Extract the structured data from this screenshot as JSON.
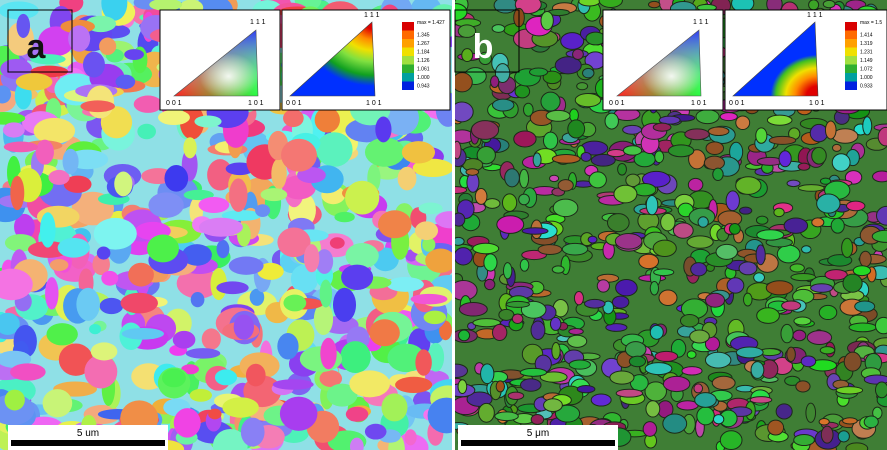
{
  "panels": [
    {
      "label": "a",
      "scale_bar": "5 um",
      "ipf": {
        "top": "1 1 1",
        "left": "0 0 1",
        "right": "1 0 1"
      },
      "pole_figure": {
        "top": "1 1 1",
        "left": "0 0 1",
        "right": "1 0 1",
        "legend": [
          "max = 1.427",
          "1.345",
          "1.267",
          "1.184",
          "1.126",
          "1.061",
          "1.000",
          "0.943"
        ]
      }
    },
    {
      "label": "b",
      "scale_bar": "5 μm",
      "ipf": {
        "top": "1 1 1",
        "left": "0 0 1",
        "right": "1 0 1"
      },
      "pole_figure": {
        "top": "1 1 1",
        "left": "0 0 1",
        "right": "1 0 1",
        "legend": [
          "max = 1.5",
          "1.414",
          "1.319",
          "1.231",
          "1.149",
          "1.072",
          "1.000",
          "0.933"
        ]
      }
    }
  ]
}
